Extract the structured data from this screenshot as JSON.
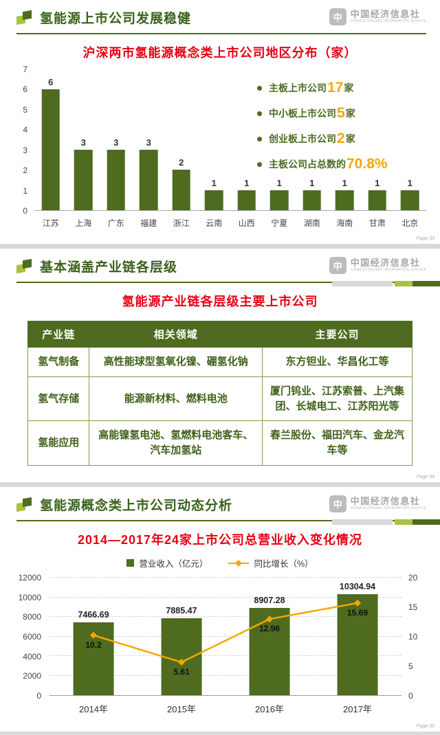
{
  "colors": {
    "green": "#4e6b20",
    "light_green": "#a9c23f",
    "red": "#e60012",
    "orange": "#f5a800"
  },
  "logo": {
    "name": "中国经济信息社",
    "subtitle": "CHINA ECONOMIC INFORMATION SERVICE",
    "icon_glyph": "中"
  },
  "slide1": {
    "title": "氢能源上市公司发展稳健",
    "subtitle": "沪深两市氢能源概念类上市公司地区分布（家）",
    "page": "Page 33",
    "bullets": [
      {
        "text": "主板上市公司",
        "value": "17",
        "suffix": "家"
      },
      {
        "text": "中小板上市公司",
        "value": "5",
        "suffix": "家"
      },
      {
        "text": "创业板上市公司",
        "value": "2",
        "suffix": "家"
      },
      {
        "text": "主板公司占总数的",
        "value": "70.8%",
        "suffix": ""
      }
    ]
  },
  "slide2": {
    "title": "基本涵盖产业链各层级",
    "subtitle": "氢能源产业链各层级主要上市公司",
    "page": "Page 34",
    "table": {
      "headers": [
        "产业链",
        "相关领域",
        "主要公司"
      ],
      "rows": [
        [
          "氢气制备",
          "高性能球型氢氧化镍、硼氢化钠",
          "东方钽业、华昌化工等"
        ],
        [
          "氢气存储",
          "能源新材料、燃料电池",
          "厦门钨业、江苏索普、上汽集团、长城电工、江苏阳光等"
        ],
        [
          "氢能应用",
          "高能镍氢电池、氢燃料电池客车、汽车加氢站",
          "春兰股份、福田汽车、金龙汽车等"
        ]
      ]
    }
  },
  "slide3": {
    "title": "氢能源概念类上市公司动态分析",
    "subtitle": "2014—2017年24家上市公司总营业收入变化情况",
    "page": "Page 35"
  },
  "chart_data": [
    {
      "type": "bar",
      "title": "沪深两市氢能源概念类上市公司地区分布（家）",
      "categories": [
        "江苏",
        "上海",
        "广东",
        "福建",
        "浙江",
        "云南",
        "山西",
        "宁夏",
        "湖南",
        "海南",
        "甘肃",
        "北京"
      ],
      "values": [
        6,
        3,
        3,
        3,
        2,
        1,
        1,
        1,
        1,
        1,
        1,
        1
      ],
      "xlabel": "",
      "ylabel": "",
      "ylim": [
        0,
        7
      ],
      "yticks": [
        0,
        1,
        2,
        3,
        4,
        5,
        6,
        7
      ],
      "grid": false,
      "bar_color": "#4e6b20"
    },
    {
      "type": "bar+line",
      "title": "2014—2017年24家上市公司总营业收入变化情况",
      "categories": [
        "2014年",
        "2015年",
        "2016年",
        "2017年"
      ],
      "series": [
        {
          "name": "营业收入（亿元）",
          "type": "bar",
          "axis": "left",
          "values": [
            7466.69,
            7885.47,
            8907.28,
            10304.94
          ],
          "color": "#4e6b20"
        },
        {
          "name": "同比增长（%）",
          "type": "line",
          "axis": "right",
          "values": [
            10.2,
            5.61,
            12.96,
            15.69
          ],
          "color": "#f5a800"
        }
      ],
      "ylim_left": [
        0,
        12000
      ],
      "yticks_left": [
        0,
        2000,
        4000,
        6000,
        8000,
        10000,
        12000
      ],
      "ylim_right": [
        0,
        20
      ],
      "yticks_right": [
        0,
        5,
        10,
        15,
        20
      ],
      "grid": true,
      "legend_position": "top"
    }
  ]
}
